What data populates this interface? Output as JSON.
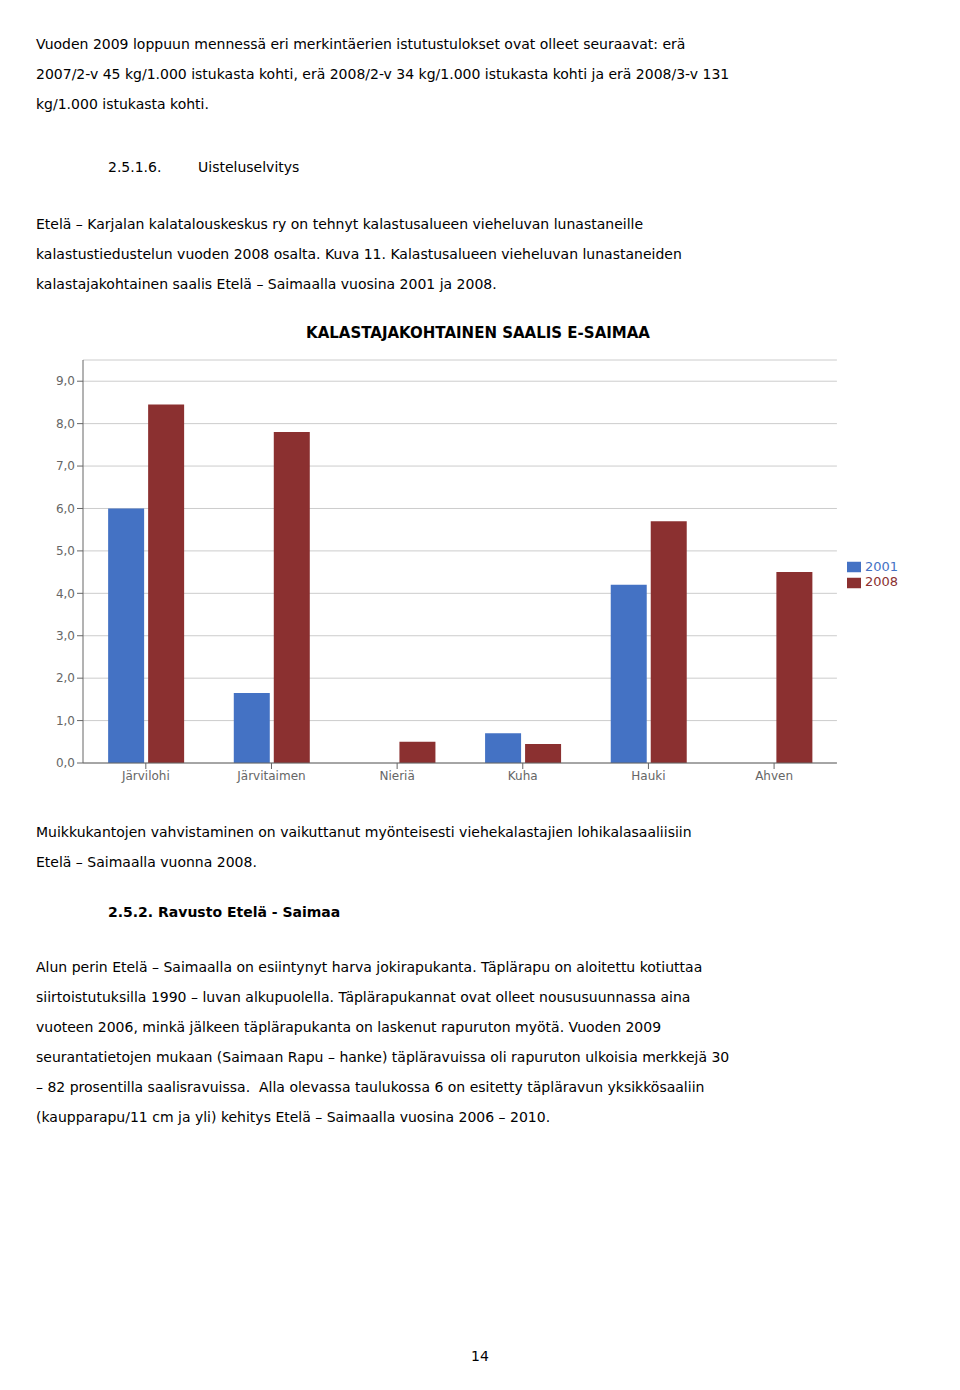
{
  "chart_data": {
    "type": "bar",
    "title": "KALASTAJAKOHTAINEN SAALIS E-SAIMAA",
    "categories": [
      "Järvilohi",
      "Järvitaimen",
      "Nieriä",
      "Kuha",
      "Hauki",
      "Ahven"
    ],
    "series": [
      {
        "name": "2001",
        "color": "#4472C4",
        "values": [
          6.0,
          1.65,
          0.0,
          0.7,
          4.2,
          0.0
        ]
      },
      {
        "name": "2008",
        "color": "#8B3030",
        "values": [
          8.45,
          7.8,
          0.5,
          0.45,
          5.7,
          4.5
        ]
      }
    ],
    "ylim": [
      0,
      9.5
    ],
    "yticks": [
      {
        "value": 0.0,
        "label": "0,0"
      },
      {
        "value": 1.0,
        "label": "1,0"
      },
      {
        "value": 2.0,
        "label": "2,0"
      },
      {
        "value": 3.0,
        "label": "3,0"
      },
      {
        "value": 4.0,
        "label": "4,0"
      },
      {
        "value": 5.0,
        "label": "5,0"
      },
      {
        "value": 6.0,
        "label": "6,0"
      },
      {
        "value": 7.0,
        "label": "7,0"
      },
      {
        "value": 8.0,
        "label": "8,0"
      },
      {
        "value": 9.0,
        "label": "9,0"
      }
    ],
    "grid": true,
    "legend": "right",
    "annotations": [
      "Vuoden 2009 loppuun mennessä eri merkintäerien istutustulokset ovat olleet seuraavat: erä",
      "2007/2-v 45 kg/1.000 istukasta kohti, erä 2008/2-v 34 kg/1.000 istukasta kohti ja erä 2008/3-v 131",
      "kg/1.000 istukasta kohti.",
      "2.5.1.6.",
      "Uisteluselvitys",
      "Etelä – Karjalan kalatalouskeskus ry on tehnyt kalastusalueen vieheluvan lunastaneille",
      "kalastustiedustelun vuoden 2008 osalta. Kuva 11. Kalastusalueen vieheluvan lunastaneiden",
      "kalastajakohtainen saalis Etelä – Saimaalla vuosina 2001 ja 2008.",
      "Muikkukantojen vahvistaminen on vaikuttanut myönteisesti viehekalastajien lohikalasaaliisiin",
      "Etelä – Saimaalla vuonna 2008.",
      "2.5.2. Ravusto Etelä - Saimaa",
      "Alun perin Etelä – Saimaalla on esiintynyt harva jokirapukanta. Täplärapu on aloitettu kotiuttaa",
      "siirtoistutuksilla 1990 – luvan alkupuolella. Täplärapukannat ovat olleet noususuunnassa aina",
      "vuoteen 2006, minkä jälkeen täplärapukanta on laskenut rapuruton myötä. Vuoden 2009",
      "seurantatietojen mukaan (Saimaan Rapu – hanke) täpläravuissa oli rapuruton ulkoisia merkkejä 30",
      "– 82 prosentilla saalisravuissa.  Alla olevassa taulukossa 6 on esitetty täpläravun yksikkösaaliin",
      "(kaupparapu/11 cm ja yli) kehitys Etelä – Saimaalla vuosina 2006 – 2010.",
      "14"
    ]
  }
}
